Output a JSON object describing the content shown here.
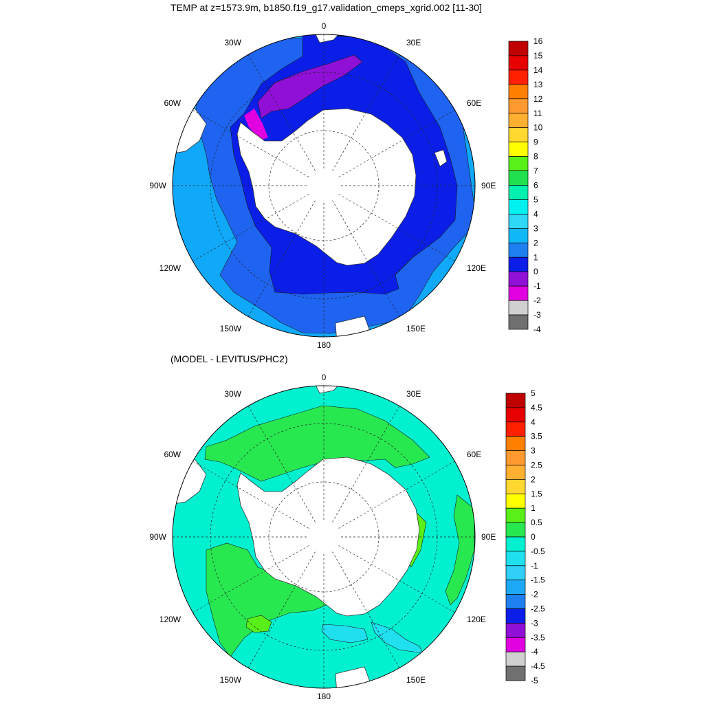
{
  "top_title": "TEMP at z=1573.9m, b1850.f19_g17.validation_cmeps_xgrid.002 [11-30]",
  "bottom_title": "(MODEL - LEVITUS/PHC2)",
  "longitude_labels": {
    "n0": "0",
    "e30": "30E",
    "e60": "60E",
    "e90": "90E",
    "e120": "120E",
    "e150": "150E",
    "s180": "180",
    "w150": "150W",
    "w120": "120W",
    "w90": "90W",
    "w60": "60W",
    "w30": "30W"
  },
  "colors": {
    "land": "#ffffff",
    "top_levels": {
      "lt_m1": "#e000e0",
      "m1_0": "#9010d8",
      "0_1": "#0a1ee8",
      "1_2": "#1e64f0",
      "2_3": "#10a8f8"
    },
    "bottom_levels": {
      "0_0.5": "#28e850",
      "m0.5_0": "#00f0d0",
      "m1_m0.5": "#20e0f0",
      "0.5_1": "#58f018"
    }
  },
  "top_legend": {
    "labels": [
      "16",
      "15",
      "14",
      "13",
      "12",
      "11",
      "10",
      "9",
      "8",
      "7",
      "6",
      "5",
      "4",
      "3",
      "2",
      "1",
      "0",
      "-1",
      "-2",
      "-3",
      "-4"
    ],
    "colors": [
      "#c00000",
      "#e80000",
      "#ff2000",
      "#ff8000",
      "#ff9a30",
      "#ffb030",
      "#ffd830",
      "#ffff00",
      "#58f018",
      "#20e050",
      "#00f0b0",
      "#00f0f0",
      "#30d8f8",
      "#10b8f8",
      "#1e80f0",
      "#0a1ee8",
      "#9010d8",
      "#e000e0",
      "#d0d0d0",
      "#707070"
    ]
  },
  "bottom_legend": {
    "labels": [
      "5",
      "4.5",
      "4",
      "3.5",
      "3",
      "2.5",
      "2",
      "1.5",
      "1",
      "0.5",
      "0",
      "-0.5",
      "-1",
      "-1.5",
      "-2",
      "-2.5",
      "-3",
      "-3.5",
      "-4",
      "-4.5",
      "-5"
    ],
    "colors": [
      "#c00000",
      "#e80000",
      "#ff2000",
      "#ff8000",
      "#ff9a30",
      "#ffb030",
      "#ffd830",
      "#ffff00",
      "#58f018",
      "#28e850",
      "#00f0d0",
      "#20e0f0",
      "#30d0f8",
      "#1ea8f8",
      "#1e80f0",
      "#0a1ee8",
      "#9010d8",
      "#e000e0",
      "#d0d0d0",
      "#707070"
    ]
  }
}
